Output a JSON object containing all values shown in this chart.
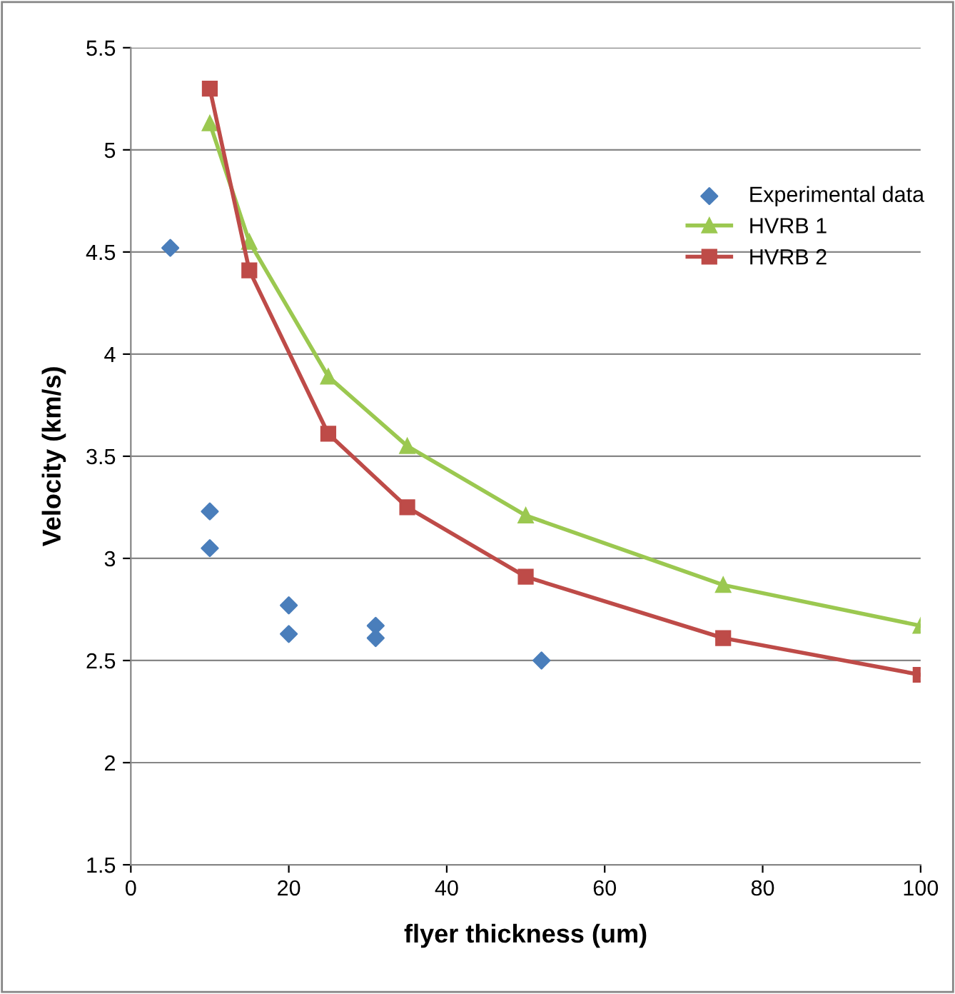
{
  "chart_data": {
    "type": "scatter",
    "xlabel": "flyer thickness (um)",
    "ylabel": "Velocity (km/s)",
    "xlim": [
      0,
      100
    ],
    "xticks": [
      0,
      20,
      40,
      60,
      80,
      100
    ],
    "ylim": [
      1.5,
      5.5
    ],
    "yticks": [
      1.5,
      2,
      2.5,
      3,
      3.5,
      4,
      4.5,
      5,
      5.5
    ],
    "grid": "y",
    "legend": "right",
    "series": [
      {
        "name": "Experimental data",
        "marker": "diamond",
        "color": "#4a7ebb",
        "x": [
          5,
          10,
          10,
          20,
          20,
          31,
          31,
          52
        ],
        "values": [
          4.52,
          3.23,
          3.05,
          2.77,
          2.63,
          2.67,
          2.61,
          2.5
        ]
      },
      {
        "name": "HVRB 1",
        "type": "line",
        "marker": "triangle",
        "color": "#9bc850",
        "x": [
          10,
          15,
          25,
          35,
          50,
          75,
          100
        ],
        "values": [
          5.13,
          4.55,
          3.89,
          3.55,
          3.21,
          2.87,
          2.67
        ]
      },
      {
        "name": "HVRB 2",
        "type": "line",
        "marker": "square",
        "color": "#be4b48",
        "x": [
          10,
          15,
          25,
          35,
          50,
          75,
          100
        ],
        "values": [
          5.3,
          4.41,
          3.61,
          3.25,
          2.91,
          2.61,
          2.43
        ]
      }
    ]
  }
}
